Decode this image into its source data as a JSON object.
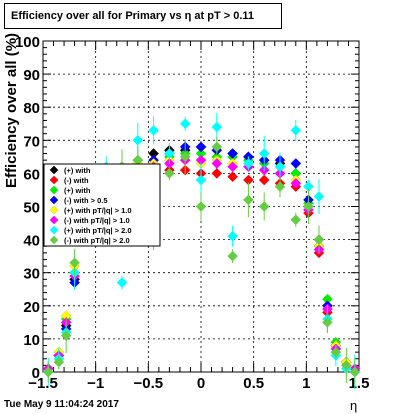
{
  "header": {
    "title": "Efficiency over all for Primary vs   η at pT > 0.11"
  },
  "footer": {
    "date": "Tue May  9 11:04:24 2017"
  },
  "chart_data": {
    "type": "scatter",
    "title": "Efficiency over all for Primary vs   η at pT > 0.11",
    "xlabel": "η",
    "ylabel": "Efficiency over all (%)",
    "xlim": [
      -1.5,
      1.5
    ],
    "ylim": [
      0,
      100
    ],
    "x_ticks": [
      -1.5,
      -1,
      -0.5,
      0,
      0.5,
      1,
      1.5
    ],
    "x_tick_labels": [
      "−1.5",
      "−1",
      "−0.5",
      "0",
      "0.5",
      "1",
      "1.5"
    ],
    "y_ticks": [
      0,
      10,
      20,
      30,
      40,
      50,
      60,
      70,
      80,
      90,
      100
    ],
    "grid": true,
    "legend_position": "left",
    "colors": [
      "#000000",
      "#ff0000",
      "#00ee00",
      "#0000ff",
      "#ffff00",
      "#ff00ff",
      "#00ffff",
      "#66cc44"
    ],
    "series": [
      {
        "name": "(+) with",
        "color": "#000000",
        "x": [
          -1.45,
          -1.35,
          -1.28,
          -1.2,
          -1.05,
          -0.9,
          -0.75,
          -0.6,
          -0.45,
          -0.3,
          -0.15,
          0.0,
          0.15,
          0.3,
          0.45,
          0.6,
          0.75,
          0.9,
          1.02,
          1.12,
          1.2,
          1.28,
          1.38,
          1.46
        ],
        "y": [
          1,
          4,
          14,
          28,
          52,
          58,
          61,
          64,
          66,
          67,
          67,
          68,
          67,
          66,
          65,
          64,
          63,
          60,
          50,
          38,
          20,
          8,
          3,
          1
        ]
      },
      {
        "name": "(-) with",
        "color": "#ff0000",
        "x": [
          -1.45,
          -1.35,
          -1.28,
          -1.2,
          -1.05,
          -0.9,
          -0.75,
          -0.6,
          -0.45,
          -0.3,
          -0.15,
          0.0,
          0.15,
          0.3,
          0.45,
          0.6,
          0.75,
          0.9,
          1.02,
          1.12,
          1.2,
          1.28,
          1.38,
          1.46
        ],
        "y": [
          1,
          5,
          15,
          30,
          54,
          58,
          59,
          60,
          60,
          61,
          61,
          60,
          60,
          59,
          58,
          58,
          57,
          56,
          48,
          36,
          18,
          7,
          2,
          1
        ]
      },
      {
        "name": "(+) with",
        "color": "#00ee00",
        "x": [
          -1.45,
          -1.35,
          -1.28,
          -1.2,
          -1.05,
          -0.9,
          -0.75,
          -0.6,
          -0.45,
          -0.3,
          -0.15,
          0.0,
          0.15,
          0.3,
          0.45,
          0.6,
          0.75,
          0.9,
          1.02,
          1.12,
          1.2,
          1.28,
          1.38,
          1.46
        ],
        "y": [
          1,
          6,
          16,
          30,
          55,
          59,
          62,
          63,
          64,
          65,
          66,
          66,
          65,
          65,
          64,
          63,
          62,
          60,
          51,
          40,
          22,
          9,
          3,
          1
        ]
      },
      {
        "name": "(-) with > 0.5",
        "color": "#0000ff",
        "x": [
          -1.45,
          -1.35,
          -1.28,
          -1.2,
          -1.05,
          -0.9,
          -0.75,
          -0.6,
          -0.45,
          -0.3,
          -0.15,
          0.0,
          0.15,
          0.3,
          0.45,
          0.6,
          0.75,
          0.9,
          1.02,
          1.12,
          1.2,
          1.28,
          1.38,
          1.46
        ],
        "y": [
          1,
          5,
          13,
          27,
          52,
          57,
          60,
          62,
          64,
          66,
          68,
          68,
          67,
          66,
          65,
          64,
          64,
          63,
          52,
          40,
          20,
          8,
          3,
          1
        ]
      },
      {
        "name": "(+) with pT/|q| > 1.0",
        "color": "#ffff00",
        "x": [
          -1.45,
          -1.35,
          -1.28,
          -1.2,
          -1.05,
          -0.9,
          -0.75,
          -0.6,
          -0.45,
          -0.3,
          -0.15,
          0.0,
          0.15,
          0.3,
          0.45,
          0.6,
          0.75,
          0.9,
          1.02,
          1.12,
          1.2,
          1.28,
          1.38,
          1.46
        ],
        "y": [
          1,
          6,
          17,
          32,
          56,
          60,
          62,
          63,
          63,
          64,
          64,
          63,
          64,
          63,
          62,
          61,
          60,
          58,
          50,
          38,
          19,
          8,
          3,
          1
        ]
      },
      {
        "name": "(-) with pT/|q| > 1.0",
        "color": "#ff00ff",
        "x": [
          -1.45,
          -1.35,
          -1.28,
          -1.2,
          -1.05,
          -0.9,
          -0.75,
          -0.6,
          -0.45,
          -0.3,
          -0.15,
          0.0,
          0.15,
          0.3,
          0.45,
          0.6,
          0.75,
          0.9,
          1.02,
          1.12,
          1.2,
          1.28,
          1.38,
          1.46
        ],
        "y": [
          1,
          5,
          15,
          29,
          53,
          58,
          60,
          61,
          62,
          63,
          64,
          64,
          63,
          62,
          62,
          61,
          60,
          57,
          49,
          37,
          19,
          7,
          2,
          1
        ]
      },
      {
        "name": "(+) with pT/|q| > 2.0",
        "color": "#00ffff",
        "x": [
          -1.45,
          -1.35,
          -1.28,
          -1.2,
          -1.05,
          -0.9,
          -0.75,
          -0.6,
          -0.45,
          -0.3,
          -0.15,
          0.0,
          0.15,
          0.3,
          0.45,
          0.6,
          0.75,
          0.9,
          1.02,
          1.12,
          1.2,
          1.28,
          1.38,
          1.46
        ],
        "y": [
          0,
          4,
          12,
          30,
          50,
          62,
          27,
          70,
          73,
          66,
          75,
          58,
          74,
          41,
          63,
          66,
          62,
          73,
          56,
          53,
          16,
          5,
          1,
          0
        ]
      },
      {
        "name": "(-) with pT/|q| > 2.0",
        "color": "#66cc44",
        "x": [
          -1.45,
          -1.35,
          -1.28,
          -1.2,
          -1.05,
          -0.9,
          -0.75,
          -0.6,
          -0.45,
          -0.3,
          -0.15,
          0.0,
          0.15,
          0.3,
          0.45,
          0.6,
          0.75,
          0.9,
          1.02,
          1.12,
          1.2,
          1.28,
          1.38,
          1.46
        ],
        "y": [
          0,
          3,
          11,
          33,
          48,
          54,
          62,
          64,
          40,
          60,
          65,
          50,
          68,
          35,
          52,
          50,
          56,
          46,
          50,
          40,
          15,
          6,
          2,
          0
        ]
      }
    ]
  }
}
